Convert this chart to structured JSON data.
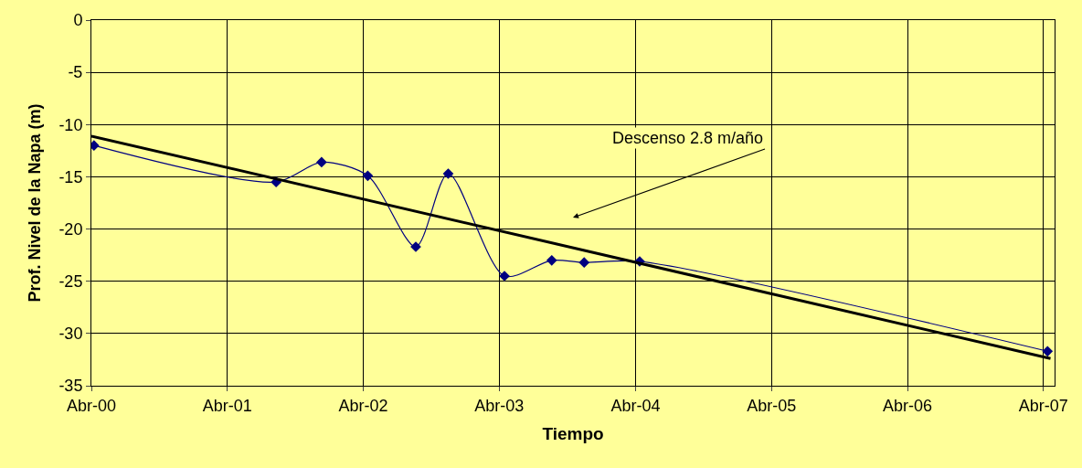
{
  "chart_data": {
    "type": "line",
    "xlabel": "Tiempo",
    "ylabel": "Prof. Nivel de la Napa (m)",
    "xlim": [
      "2000-04-01",
      "2007-05-01"
    ],
    "xticks": [
      {
        "value": "2000-04-01",
        "label": "Abr-00"
      },
      {
        "value": "2001-04-01",
        "label": "Abr-01"
      },
      {
        "value": "2002-04-01",
        "label": "Abr-02"
      },
      {
        "value": "2003-04-01",
        "label": "Abr-03"
      },
      {
        "value": "2004-04-01",
        "label": "Abr-04"
      },
      {
        "value": "2005-04-01",
        "label": "Abr-05"
      },
      {
        "value": "2006-04-01",
        "label": "Abr-06"
      },
      {
        "value": "2007-04-01",
        "label": "Abr-07"
      }
    ],
    "ylim": [
      -35,
      0
    ],
    "yticks": [
      0,
      -5,
      -10,
      -15,
      -20,
      -25,
      -30,
      -35
    ],
    "grid": true,
    "series": [
      {
        "color": "#000080",
        "marker": "diamond",
        "line_style": "solid",
        "x": [
          "2000-04-08",
          "2001-08-10",
          "2001-12-10",
          "2002-04-13",
          "2002-08-20",
          "2002-11-15",
          "2003-04-15",
          "2003-08-20",
          "2003-11-15",
          "2004-04-12",
          "2007-04-12"
        ],
        "values": [
          -12.0,
          -15.5,
          -13.6,
          -14.9,
          -21.7,
          -14.7,
          -24.5,
          -23.0,
          -23.2,
          -23.1,
          -31.7
        ]
      },
      {
        "color": "#000000",
        "marker": "none",
        "line_style": "solid",
        "x": [
          "2000-04-01",
          "2007-04-20"
        ],
        "values": [
          -11.1,
          -32.4
        ]
      }
    ],
    "annotations": [
      "Descenso 2.8 m/año"
    ]
  }
}
